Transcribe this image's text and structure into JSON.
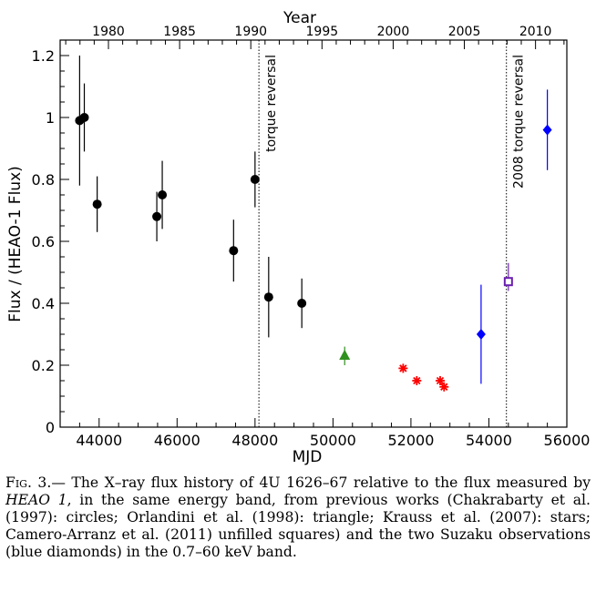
{
  "chart_data": {
    "type": "scatter",
    "xlabel": "MJD",
    "ylabel": "Flux / (HEAO-1 Flux)",
    "top_axis_label": "Year",
    "xlim": [
      43000,
      56000
    ],
    "ylim": [
      0,
      1.25
    ],
    "x_ticks": [
      44000,
      46000,
      48000,
      50000,
      52000,
      54000,
      56000
    ],
    "x_tick_labels": [
      "44000",
      "46000",
      "48000",
      "50000",
      "52000",
      "54000",
      "56000"
    ],
    "y_ticks": [
      0,
      0.2,
      0.4,
      0.6,
      0.8,
      1.0,
      1.2
    ],
    "y_tick_labels": [
      "0",
      "0.2",
      "0.4",
      "0.6",
      "0.8",
      "1",
      "1.2"
    ],
    "top_ticks": [
      {
        "year": 1980,
        "mjd": 44239
      },
      {
        "year": 1985,
        "mjd": 46066
      },
      {
        "year": 1990,
        "mjd": 47892
      },
      {
        "year": 1995,
        "mjd": 49718
      },
      {
        "year": 2000,
        "mjd": 51544
      },
      {
        "year": 2005,
        "mjd": 53371
      },
      {
        "year": 2010,
        "mjd": 55197
      }
    ],
    "top_tick_labels": [
      "1980",
      "1985",
      "1990",
      "1995",
      "2000",
      "2005",
      "2010"
    ],
    "grid": false,
    "annotations": [
      {
        "text": "torque reversal",
        "x": 48100
      },
      {
        "text": "2008 torque reversal",
        "x": 54450
      }
    ],
    "series": [
      {
        "marker": "circle",
        "color": "#000000",
        "points": [
          {
            "x": 43500,
            "y": 0.99,
            "ylow": 0.78,
            "yhigh": 1.2
          },
          {
            "x": 43620,
            "y": 1.0,
            "ylow": 0.89,
            "yhigh": 1.11
          },
          {
            "x": 43950,
            "y": 0.72,
            "ylow": 0.63,
            "yhigh": 0.81
          },
          {
            "x": 45480,
            "y": 0.68,
            "ylow": 0.6,
            "yhigh": 0.76
          },
          {
            "x": 45620,
            "y": 0.75,
            "ylow": 0.64,
            "yhigh": 0.86
          },
          {
            "x": 47450,
            "y": 0.57,
            "ylow": 0.47,
            "yhigh": 0.67
          },
          {
            "x": 48000,
            "y": 0.8,
            "ylow": 0.71,
            "yhigh": 0.89
          },
          {
            "x": 48350,
            "y": 0.42,
            "ylow": 0.29,
            "yhigh": 0.55
          },
          {
            "x": 49200,
            "y": 0.4,
            "ylow": 0.32,
            "yhigh": 0.48
          }
        ]
      },
      {
        "marker": "triangle",
        "color": "#2f8f1f",
        "points": [
          {
            "x": 50300,
            "y": 0.23,
            "ylow": 0.2,
            "yhigh": 0.26
          }
        ]
      },
      {
        "marker": "star",
        "color": "#ff0000",
        "points": [
          {
            "x": 51800,
            "y": 0.19
          },
          {
            "x": 52150,
            "y": 0.15
          },
          {
            "x": 52750,
            "y": 0.15
          },
          {
            "x": 52850,
            "y": 0.13
          }
        ]
      },
      {
        "marker": "open-square",
        "color": "#6a1fb0",
        "points": [
          {
            "x": 54500,
            "y": 0.47,
            "ylow": 0.44,
            "yhigh": 0.53
          }
        ]
      },
      {
        "marker": "diamond",
        "color": "#0000ff",
        "points": [
          {
            "x": 53800,
            "y": 0.3,
            "ylow": 0.14,
            "yhigh": 0.46
          },
          {
            "x": 55500,
            "y": 0.96,
            "ylow": 0.83,
            "yhigh": 1.09
          }
        ]
      }
    ]
  },
  "caption": {
    "prefix": "Fig. 3.",
    "part1": "— The X–ray flux history of 4U 1626–67 relative to the flux measured by ",
    "instrument": "HEAO 1",
    "part2": ", in the same energy band, from previous works (Chakrabarty et al. (1997): circles; Orlandini et al. (1998): triangle; Krauss et al. (2007): stars; Camero-Arranz et al. (2011) unfilled squares) and the two Suzaku observations (blue diamonds) in the 0.7–60 keV band."
  }
}
